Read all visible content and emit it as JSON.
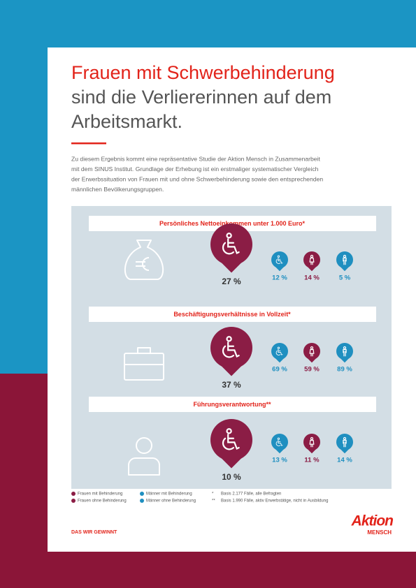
{
  "title": {
    "highlight": "Frauen mit Schwerbehinderung",
    "rest_lines": [
      "sind die Verliererinnen auf dem",
      "Arbeitsmarkt."
    ]
  },
  "intro": [
    "Zu diesem Ergebnis kommt eine repräsentative Studie der Aktion Mensch in Zusammenarbeit",
    "mit dem SINUS Institut. Grundlage der Erhebung ist ein erstmaliger systematischer Vergleich",
    "der Erwerbssituation von Frauen mit und ohne Schwerbehinderung sowie den entsprechenden",
    "männlichen Bevölkerungsgruppen."
  ],
  "sections": [
    {
      "heading": "Persönliches Nettoeinkommen unter 1.000 Euro*",
      "main": "27 %",
      "others": [
        "12 %",
        "14 %",
        "5 %"
      ]
    },
    {
      "heading": "Beschäftigungsverhältnisse in Vollzeit*",
      "main": "37 %",
      "others": [
        "69 %",
        "59 %",
        "89 %"
      ]
    },
    {
      "heading": "Führungsverantwortung**",
      "main": "10 %",
      "others": [
        "13 %",
        "11 %",
        "14 %"
      ]
    }
  ],
  "legend": [
    {
      "label": "Frauen mit Behinderung",
      "color": "#8b1d45"
    },
    {
      "label": "Frauen ohne Behinderung",
      "color": "#8b1d45"
    },
    {
      "label": "Männer mit Behinderung",
      "color": "#1f8fc0"
    },
    {
      "label": "Männer ohne Behinderung",
      "color": "#1f8fc0"
    }
  ],
  "footnotes": [
    {
      "mark": "*",
      "text": "Basis 2.177 Fälle, alle Befragten"
    },
    {
      "mark": "**",
      "text": "Basis 1.990 Fälle, aktiv Erwerbstätige, nicht in Ausbildung"
    }
  ],
  "footer": "DAS WIR GEWINNT",
  "logo": {
    "top": "Aktion",
    "bottom": "MENSCH"
  }
}
